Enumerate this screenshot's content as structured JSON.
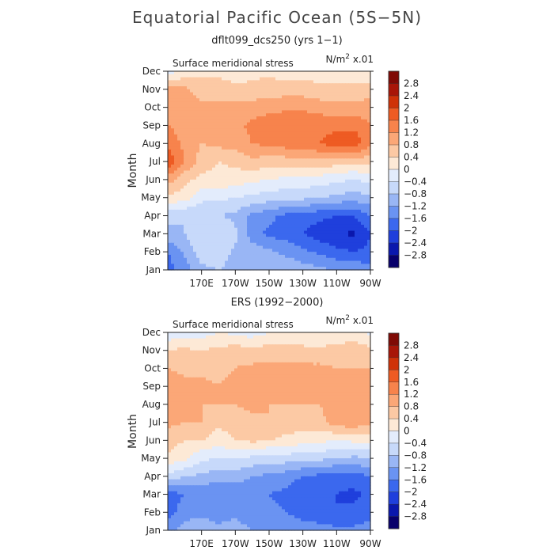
{
  "figure": {
    "title": "Equatorial Pacific Ocean (5S−5N)"
  },
  "colors": {
    "levels": [
      "#08006b",
      "#0a17ad",
      "#1f3fdc",
      "#3b68ee",
      "#6a93f2",
      "#99b6f5",
      "#c7d9fa",
      "#e3ecfc",
      "#fde9d6",
      "#fcc9a4",
      "#fba777",
      "#f7834c",
      "#ee5b23",
      "#cf3208",
      "#a81608",
      "#7f0a05"
    ],
    "axis": "#222222"
  },
  "colorbar": {
    "labels": [
      "2.8",
      "2.4",
      "2",
      "1.6",
      "1.2",
      "0.8",
      "0.4",
      "0",
      "−0.4",
      "−0.8",
      "−1.2",
      "−1.6",
      "−2",
      "−2.4",
      "−2.8"
    ]
  },
  "chart_data": [
    {
      "type": "heatmap",
      "title": "dflt099_dcs250 (yrs 1−1)",
      "panel_label": "Surface meridional stress",
      "units_label": "N/m",
      "units_sup": "2",
      "units_suffix": " x.01",
      "ylabel": "Month",
      "xlabel": "",
      "x": [
        150,
        160,
        170,
        180,
        190,
        200,
        210,
        220,
        230,
        240,
        250,
        260,
        270
      ],
      "x_ticks": [
        "170E",
        "170W",
        "150W",
        "130W",
        "110W",
        "90W"
      ],
      "y": [
        "Jan",
        "Feb",
        "Mar",
        "Apr",
        "May",
        "Jun",
        "Jul",
        "Aug",
        "Sep",
        "Oct",
        "Nov",
        "Dec"
      ],
      "xlim": [
        150,
        270
      ],
      "levels": [
        -3.2,
        -2.8,
        -2.4,
        -2,
        -1.6,
        -1.2,
        -0.8,
        -0.4,
        0,
        0.4,
        0.8,
        1.2,
        1.6,
        2,
        2.4,
        2.8,
        3.2
      ],
      "z": [
        [
          -1.8,
          -1.4,
          -0.9,
          -0.8,
          -1.0,
          -0.9,
          -0.9,
          -0.9,
          -1.0,
          -1.1,
          -1.2,
          -1.3,
          -1.4
        ],
        [
          -1.6,
          -1.1,
          -0.6,
          -0.5,
          -0.9,
          -1.0,
          -1.1,
          -1.3,
          -1.5,
          -1.7,
          -1.9,
          -2.0,
          -1.9
        ],
        [
          -0.9,
          -0.8,
          -0.4,
          -0.4,
          -0.7,
          -1.4,
          -1.7,
          -1.8,
          -2.0,
          -2.2,
          -2.3,
          -2.5,
          -2.0
        ],
        [
          -0.7,
          -0.8,
          -0.7,
          -0.8,
          -0.9,
          -1.3,
          -1.5,
          -1.7,
          -1.8,
          -1.9,
          -2.0,
          -2.0,
          -1.6
        ],
        [
          0.3,
          0.2,
          -0.3,
          -0.3,
          -0.4,
          -0.5,
          -0.6,
          -0.7,
          -0.7,
          -0.8,
          -0.9,
          -1.0,
          -0.9
        ],
        [
          1.0,
          0.5,
          0.3,
          0.3,
          0.2,
          0.1,
          0.0,
          -0.1,
          -0.1,
          -0.2,
          -0.3,
          -0.4,
          -0.3
        ],
        [
          1.9,
          1.2,
          0.6,
          0.4,
          0.5,
          0.7,
          0.6,
          0.6,
          0.6,
          0.7,
          0.6,
          0.5,
          0.6
        ],
        [
          1.5,
          1.1,
          0.8,
          0.9,
          1.0,
          1.2,
          1.3,
          1.4,
          1.5,
          1.6,
          1.8,
          1.9,
          1.3
        ],
        [
          1.2,
          1.0,
          1.0,
          1.0,
          1.1,
          1.3,
          1.5,
          1.6,
          1.6,
          1.5,
          1.5,
          1.5,
          1.2
        ],
        [
          1.0,
          1.0,
          0.9,
          0.9,
          0.9,
          1.0,
          1.0,
          1.1,
          1.1,
          1.0,
          0.9,
          0.9,
          1.0
        ],
        [
          0.9,
          0.9,
          0.6,
          0.6,
          0.5,
          0.5,
          0.6,
          0.6,
          0.6,
          0.5,
          0.5,
          0.5,
          0.6
        ],
        [
          -0.3,
          0.2,
          0.3,
          0.3,
          0.2,
          0.3,
          0.3,
          0.2,
          0.2,
          0.2,
          0.1,
          0.1,
          0.0
        ]
      ]
    },
    {
      "type": "heatmap",
      "title": "ERS (1992−2000)",
      "panel_label": "Surface meridional stress",
      "units_label": "N/m",
      "units_sup": "2",
      "units_suffix": " x.01",
      "ylabel": "Month",
      "xlabel": "",
      "x": [
        150,
        160,
        170,
        180,
        190,
        200,
        210,
        220,
        230,
        240,
        250,
        260,
        270
      ],
      "x_ticks": [
        "170E",
        "170W",
        "150W",
        "130W",
        "110W",
        "90W"
      ],
      "y": [
        "Jan",
        "Feb",
        "Mar",
        "Apr",
        "May",
        "Jun",
        "Jul",
        "Aug",
        "Sep",
        "Oct",
        "Nov",
        "Dec"
      ],
      "xlim": [
        150,
        270
      ],
      "levels": [
        -3.2,
        -2.8,
        -2.4,
        -2,
        -1.6,
        -1.2,
        -0.8,
        -0.4,
        0,
        0.4,
        0.8,
        1.2,
        1.6,
        2,
        2.4,
        2.8,
        3.2
      ],
      "z": [
        [
          -1.4,
          -1.0,
          -0.9,
          -1.1,
          -1.0,
          -1.2,
          -1.2,
          -1.3,
          -1.4,
          -1.4,
          -1.5,
          -1.5,
          -1.4
        ],
        [
          -1.8,
          -1.4,
          -1.3,
          -1.4,
          -1.3,
          -1.5,
          -1.5,
          -1.6,
          -1.8,
          -1.9,
          -2.0,
          -1.9,
          -1.8
        ],
        [
          -1.8,
          -1.6,
          -1.5,
          -1.6,
          -1.5,
          -1.6,
          -1.6,
          -1.7,
          -2.0,
          -2.0,
          -2.0,
          -2.1,
          -1.9
        ],
        [
          -0.5,
          -0.8,
          -0.9,
          -1.0,
          -1.0,
          -1.2,
          -1.3,
          -1.4,
          -1.6,
          -1.7,
          -1.8,
          -1.8,
          -1.6
        ],
        [
          0.3,
          0.1,
          -0.3,
          -0.4,
          -0.4,
          -0.5,
          -0.6,
          -0.6,
          -0.7,
          -0.7,
          -0.8,
          -0.9,
          -0.8
        ],
        [
          0.6,
          0.4,
          0.4,
          0.2,
          0.4,
          0.5,
          0.4,
          0.3,
          0.2,
          0.1,
          0.0,
          0.1,
          0.1
        ],
        [
          0.9,
          0.8,
          0.8,
          0.5,
          0.6,
          0.7,
          0.8,
          0.6,
          0.6,
          0.7,
          1.0,
          1.1,
          0.9
        ],
        [
          1.0,
          0.9,
          0.8,
          0.8,
          0.8,
          0.9,
          0.8,
          0.8,
          0.8,
          0.8,
          0.9,
          1.0,
          0.9
        ],
        [
          1.1,
          0.9,
          0.9,
          0.8,
          0.9,
          0.9,
          0.9,
          0.9,
          0.9,
          0.8,
          0.8,
          0.9,
          0.8
        ],
        [
          0.8,
          0.7,
          0.7,
          0.7,
          0.8,
          0.9,
          0.9,
          0.9,
          0.9,
          0.9,
          0.8,
          0.8,
          0.8
        ],
        [
          0.4,
          0.5,
          0.4,
          0.5,
          0.6,
          0.5,
          0.6,
          0.6,
          0.5,
          0.5,
          0.6,
          0.7,
          0.5
        ],
        [
          -0.3,
          -0.3,
          -0.2,
          0.0,
          -0.1,
          -0.2,
          0.0,
          0.1,
          0.1,
          0.0,
          0.0,
          0.1,
          -0.1
        ]
      ]
    }
  ]
}
